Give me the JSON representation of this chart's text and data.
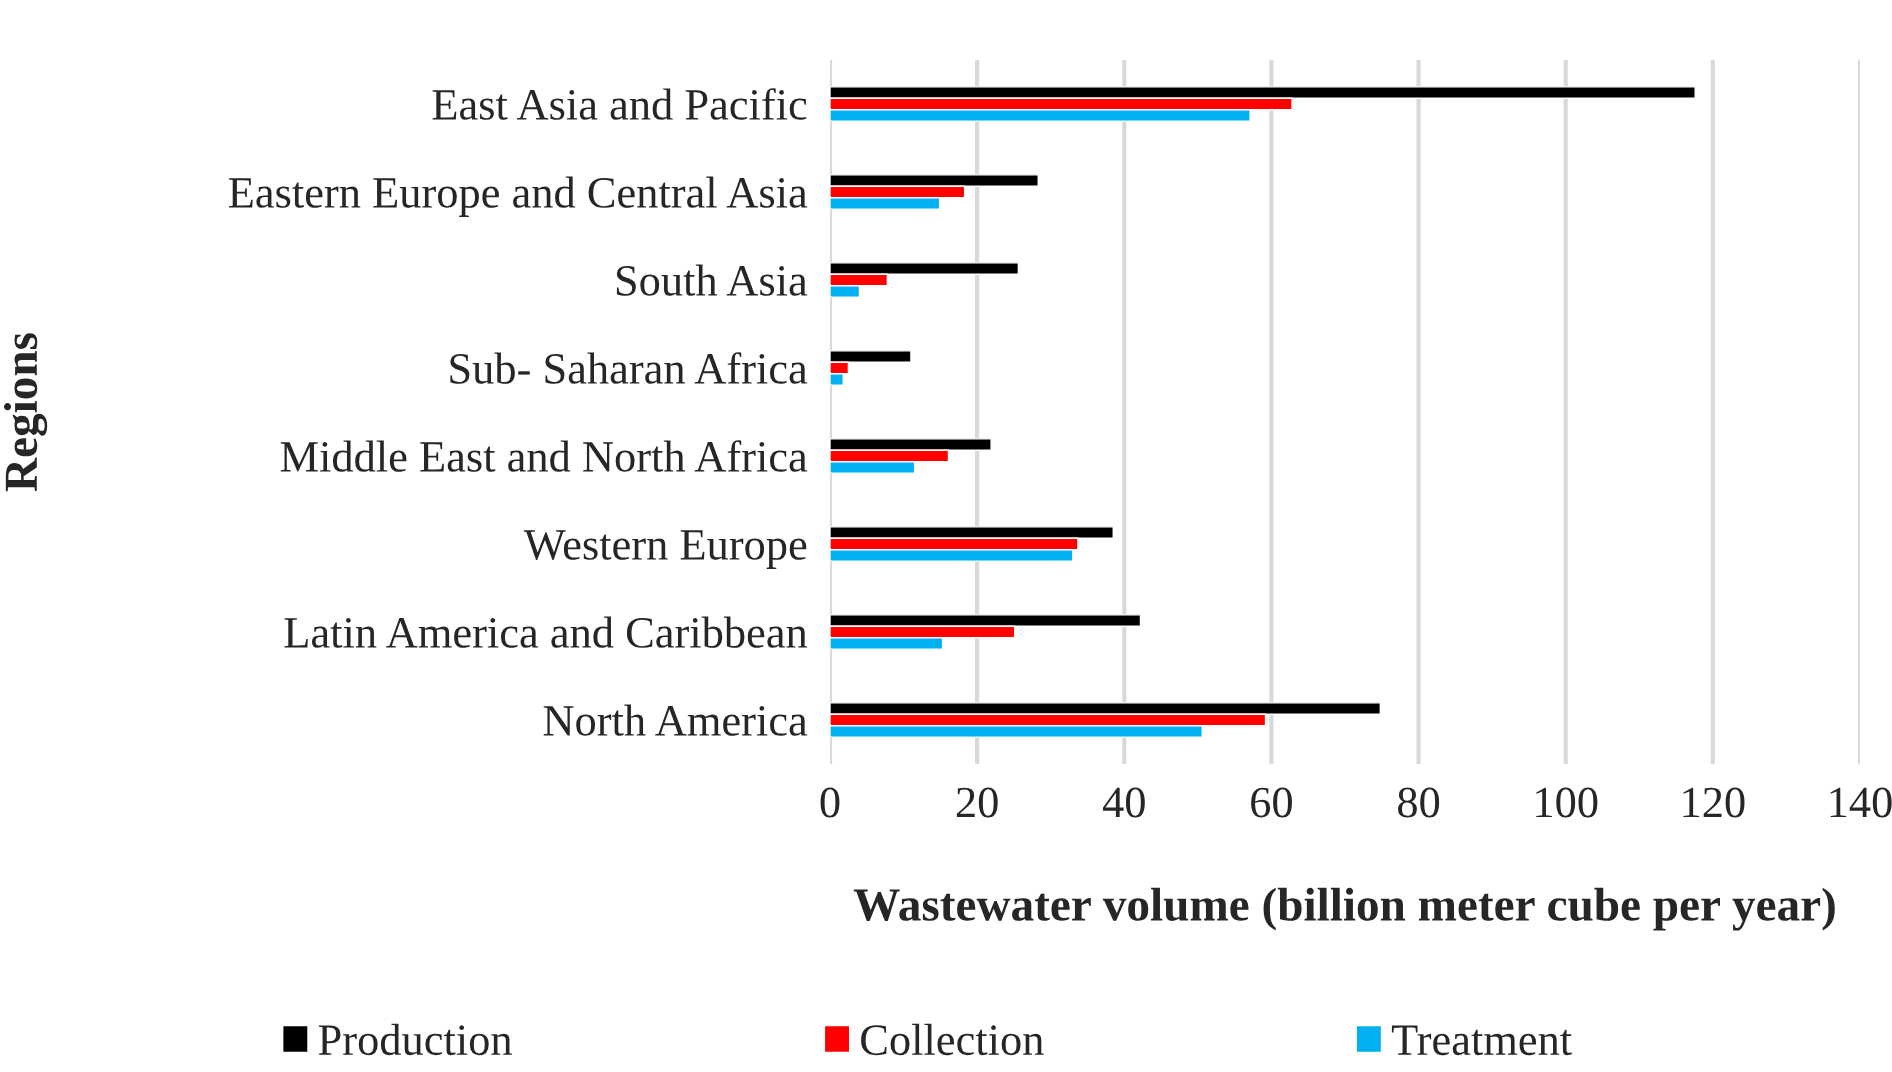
{
  "chart_data": {
    "type": "bar",
    "orientation": "horizontal",
    "categories": [
      "East Asia and Pacific",
      "Eastern Europe and Central Asia",
      "South Asia",
      "Sub- Saharan Africa",
      "Middle East and North Africa",
      "Western Europe",
      "Latin America and Caribbean",
      "North America"
    ],
    "series": [
      {
        "name": "Production",
        "color": "#000000",
        "values": [
          117.6,
          28.3,
          25.6,
          11.0,
          21.9,
          38.5,
          42.2,
          74.8
        ]
      },
      {
        "name": "Collection",
        "color": "#ff0000",
        "values": [
          62.8,
          18.3,
          7.8,
          2.5,
          16.1,
          33.7,
          25.1,
          59.2
        ]
      },
      {
        "name": "Treatment",
        "color": "#00b0f0",
        "values": [
          57.1,
          14.9,
          4.0,
          1.8,
          11.5,
          33.0,
          15.3,
          50.6
        ]
      }
    ],
    "xlabel": "Wastewater volume (billion meter cube per year)",
    "ylabel": "Regions",
    "xlim": [
      0,
      140
    ],
    "xticks": [
      0,
      20,
      40,
      60,
      80,
      100,
      120,
      140
    ],
    "grid": "x",
    "legend": "bottom"
  }
}
